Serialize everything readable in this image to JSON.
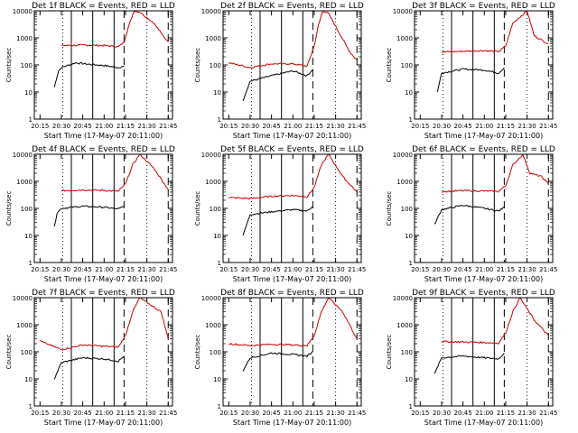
{
  "figure": {
    "xlabel": "Start Time (17-May-07 20:11:00)",
    "ylabel": "Counts/sec",
    "x_ticks": [
      "20:15",
      "20:30",
      "20:45",
      "21:00",
      "21:15",
      "21:30",
      "21:45"
    ],
    "y_ticks": [
      "1",
      "10",
      "100",
      "1000",
      "10000"
    ]
  },
  "chart_data": [
    {
      "type": "line",
      "title": "Det 1f BLACK = Events, RED = LLD",
      "xlabel": "Start Time (17-May-07 20:11:00)",
      "ylabel": "Counts/sec",
      "y_scale": "log",
      "ylim": [
        1,
        10000
      ],
      "x_ticks": [
        "20:15",
        "20:30",
        "20:45",
        "21:00",
        "21:15",
        "21:30",
        "21:45"
      ],
      "series": [
        {
          "name": "Events",
          "color": "#000000",
          "x": [
            "20:25",
            "20:28",
            "20:30",
            "20:40",
            "20:50",
            "21:00",
            "21:10",
            "21:14"
          ],
          "values": [
            15,
            60,
            80,
            120,
            105,
            95,
            80,
            90
          ]
        },
        {
          "name": "LLD",
          "color": "#cc0000",
          "x": [
            "20:30",
            "20:45",
            "21:00",
            "21:10",
            "21:14",
            "21:17",
            "21:21",
            "21:25",
            "21:35",
            "21:40",
            "21:45"
          ],
          "values": [
            520,
            540,
            520,
            470,
            700,
            2500,
            10000,
            9000,
            3500,
            1500,
            700
          ]
        }
      ]
    },
    {
      "type": "line",
      "title": "Det 2f BLACK = Events, RED = LLD",
      "xlabel": "Start Time (17-May-07 20:11:00)",
      "ylabel": "Counts/sec",
      "y_scale": "log",
      "ylim": [
        1,
        10000
      ],
      "x_ticks": [
        "20:15",
        "20:30",
        "20:45",
        "21:00",
        "21:15",
        "21:30",
        "21:45"
      ],
      "series": [
        {
          "name": "Events",
          "color": "#000000",
          "x": [
            "20:25",
            "20:30",
            "20:45",
            "21:00",
            "21:10",
            "21:14"
          ],
          "values": [
            5,
            25,
            40,
            60,
            40,
            70
          ]
        },
        {
          "name": "LLD",
          "color": "#cc0000",
          "x": [
            "20:15",
            "20:30",
            "20:45",
            "21:00",
            "21:10",
            "21:15",
            "21:18",
            "21:21",
            "21:25",
            "21:40",
            "21:45"
          ],
          "values": [
            120,
            80,
            110,
            110,
            90,
            500,
            3000,
            10000,
            8000,
            300,
            150
          ]
        }
      ]
    },
    {
      "type": "line",
      "title": "Det 3f BLACK = Events, RED = LLD",
      "xlabel": "Start Time (17-May-07 20:11:00)",
      "ylabel": "Counts/sec",
      "y_scale": "log",
      "ylim": [
        1,
        10000
      ],
      "x_ticks": [
        "20:15",
        "20:30",
        "20:45",
        "21:00",
        "21:15",
        "21:30",
        "21:45"
      ],
      "series": [
        {
          "name": "Events",
          "color": "#000000",
          "x": [
            "20:27",
            "20:30",
            "20:45",
            "21:00",
            "21:10",
            "21:14"
          ],
          "values": [
            10,
            50,
            70,
            65,
            50,
            80
          ]
        },
        {
          "name": "LLD",
          "color": "#cc0000",
          "x": [
            "20:30",
            "20:45",
            "21:00",
            "21:10",
            "21:15",
            "21:20",
            "21:30",
            "21:35",
            "21:45"
          ],
          "values": [
            300,
            320,
            340,
            310,
            500,
            3500,
            10000,
            1200,
            600
          ]
        }
      ]
    },
    {
      "type": "line",
      "title": "Det 4f BLACK = Events, RED = LLD",
      "xlabel": "Start Time (17-May-07 20:11:00)",
      "ylabel": "Counts/sec",
      "y_scale": "log",
      "ylim": [
        1,
        10000
      ],
      "x_ticks": [
        "20:15",
        "20:30",
        "20:45",
        "21:00",
        "21:15",
        "21:30",
        "21:45"
      ],
      "series": [
        {
          "name": "Events",
          "color": "#000000",
          "x": [
            "20:25",
            "20:27",
            "20:30",
            "20:45",
            "21:00",
            "21:10",
            "21:14"
          ],
          "values": [
            20,
            70,
            100,
            120,
            110,
            95,
            120
          ]
        },
        {
          "name": "LLD",
          "color": "#cc0000",
          "x": [
            "20:30",
            "20:45",
            "21:00",
            "21:10",
            "21:15",
            "21:20",
            "21:25",
            "21:35",
            "21:45"
          ],
          "values": [
            450,
            480,
            460,
            430,
            800,
            4000,
            10000,
            3000,
            500
          ]
        }
      ]
    },
    {
      "type": "line",
      "title": "Det 5f BLACK = Events, RED = LLD",
      "xlabel": "Start Time (17-May-07 20:11:00)",
      "ylabel": "Counts/sec",
      "y_scale": "log",
      "ylim": [
        1,
        10000
      ],
      "x_ticks": [
        "20:15",
        "20:30",
        "20:45",
        "21:00",
        "21:15",
        "21:30",
        "21:45"
      ],
      "series": [
        {
          "name": "Events",
          "color": "#000000",
          "x": [
            "20:25",
            "20:30",
            "20:45",
            "21:00",
            "21:10",
            "21:14"
          ],
          "values": [
            10,
            60,
            75,
            90,
            80,
            120
          ]
        },
        {
          "name": "LLD",
          "color": "#cc0000",
          "x": [
            "20:15",
            "20:30",
            "20:45",
            "21:00",
            "21:10",
            "21:15",
            "21:20",
            "21:25",
            "21:35",
            "21:45"
          ],
          "values": [
            250,
            230,
            280,
            300,
            270,
            600,
            4000,
            10000,
            1500,
            400
          ]
        }
      ]
    },
    {
      "type": "line",
      "title": "Det 6f BLACK = Events, RED = LLD",
      "xlabel": "Start Time (17-May-07 20:11:00)",
      "ylabel": "Counts/sec",
      "y_scale": "log",
      "ylim": [
        1,
        10000
      ],
      "x_ticks": [
        "20:15",
        "20:30",
        "20:45",
        "21:00",
        "21:15",
        "21:30",
        "21:45"
      ],
      "series": [
        {
          "name": "Events",
          "color": "#000000",
          "x": [
            "20:25",
            "20:30",
            "20:45",
            "21:00",
            "21:10",
            "21:14"
          ],
          "values": [
            25,
            90,
            130,
            100,
            80,
            110
          ]
        },
        {
          "name": "LLD",
          "color": "#cc0000",
          "x": [
            "20:30",
            "20:45",
            "21:00",
            "21:10",
            "21:15",
            "21:20",
            "21:27",
            "21:32",
            "21:40",
            "21:45"
          ],
          "values": [
            420,
            450,
            440,
            420,
            700,
            4000,
            10000,
            2000,
            1500,
            800
          ]
        }
      ]
    },
    {
      "type": "line",
      "title": "Det 7f BLACK = Events, RED = LLD",
      "xlabel": "Start Time (17-May-07 20:11:00)",
      "ylabel": "Counts/sec",
      "y_scale": "log",
      "ylim": [
        1,
        10000
      ],
      "x_ticks": [
        "20:15",
        "20:30",
        "20:45",
        "21:00",
        "21:15",
        "21:30",
        "21:45"
      ],
      "series": [
        {
          "name": "Events",
          "color": "#000000",
          "x": [
            "20:25",
            "20:30",
            "20:45",
            "21:00",
            "21:10",
            "21:14"
          ],
          "values": [
            10,
            40,
            60,
            55,
            45,
            70
          ]
        },
        {
          "name": "LLD",
          "color": "#cc0000",
          "x": [
            "20:15",
            "20:30",
            "20:45",
            "21:00",
            "21:10",
            "21:15",
            "21:20",
            "21:25",
            "21:40",
            "21:45"
          ],
          "values": [
            250,
            120,
            180,
            160,
            150,
            400,
            3000,
            10000,
            3000,
            300
          ]
        }
      ]
    },
    {
      "type": "line",
      "title": "Det 8f BLACK = Events, RED = LLD",
      "xlabel": "Start Time (17-May-07 20:11:00)",
      "ylabel": "Counts/sec",
      "y_scale": "log",
      "ylim": [
        1,
        10000
      ],
      "x_ticks": [
        "20:15",
        "20:30",
        "20:45",
        "21:00",
        "21:15",
        "21:30",
        "21:45"
      ],
      "series": [
        {
          "name": "Events",
          "color": "#000000",
          "x": [
            "20:25",
            "20:30",
            "20:45",
            "21:00",
            "21:10",
            "21:14"
          ],
          "values": [
            20,
            60,
            90,
            80,
            70,
            100
          ]
        },
        {
          "name": "LLD",
          "color": "#cc0000",
          "x": [
            "20:15",
            "20:30",
            "20:45",
            "21:00",
            "21:10",
            "21:15",
            "21:20",
            "21:25",
            "21:35",
            "21:45"
          ],
          "values": [
            200,
            170,
            190,
            180,
            170,
            400,
            3000,
            10000,
            3000,
            300
          ]
        }
      ]
    },
    {
      "type": "line",
      "title": "Det 9f BLACK = Events, RED = LLD",
      "xlabel": "Start Time (17-May-07 20:11:00)",
      "ylabel": "Counts/sec",
      "y_scale": "log",
      "ylim": [
        1,
        10000
      ],
      "x_ticks": [
        "20:15",
        "20:30",
        "20:45",
        "21:00",
        "21:15",
        "21:30",
        "21:45"
      ],
      "series": [
        {
          "name": "Events",
          "color": "#000000",
          "x": [
            "20:25",
            "20:30",
            "20:45",
            "21:00",
            "21:10",
            "21:14"
          ],
          "values": [
            15,
            60,
            70,
            60,
            55,
            90
          ]
        },
        {
          "name": "LLD",
          "color": "#cc0000",
          "x": [
            "20:30",
            "20:45",
            "21:00",
            "21:10",
            "21:15",
            "21:20",
            "21:25",
            "21:35",
            "21:45"
          ],
          "values": [
            240,
            230,
            220,
            210,
            500,
            3000,
            10000,
            1500,
            400
          ]
        }
      ]
    }
  ]
}
